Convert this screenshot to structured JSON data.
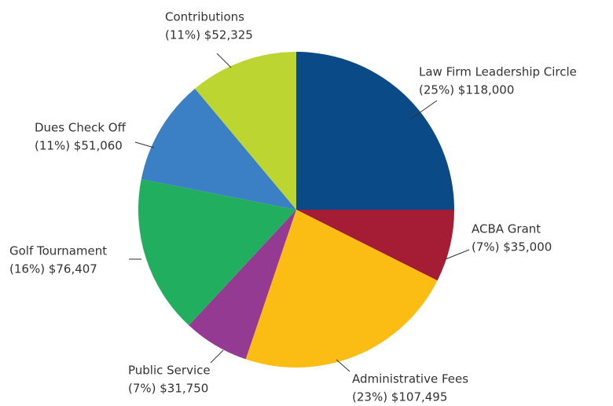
{
  "chart_data": {
    "type": "pie",
    "categories": [
      "Law Firm Leadership Circle",
      "ACBA Grant",
      "Administrative Fees",
      "Public Service",
      "Golf Tournament",
      "Dues Check Off",
      "Contributions"
    ],
    "values": [
      118000,
      35000,
      107495,
      31750,
      76407,
      51060,
      52325
    ],
    "value_labels": [
      "(25%) $118,000",
      "(7%) $35,000",
      "(23%) $107,495",
      "(7%) $31,750",
      "(16%) $76,407",
      "(11%) $51,060",
      "(11%) $52,325"
    ],
    "colors": [
      "#0a4a86",
      "#a51d35",
      "#fbbd13",
      "#943a93",
      "#22ae5f",
      "#3b7fc4",
      "#bcd530"
    ]
  }
}
